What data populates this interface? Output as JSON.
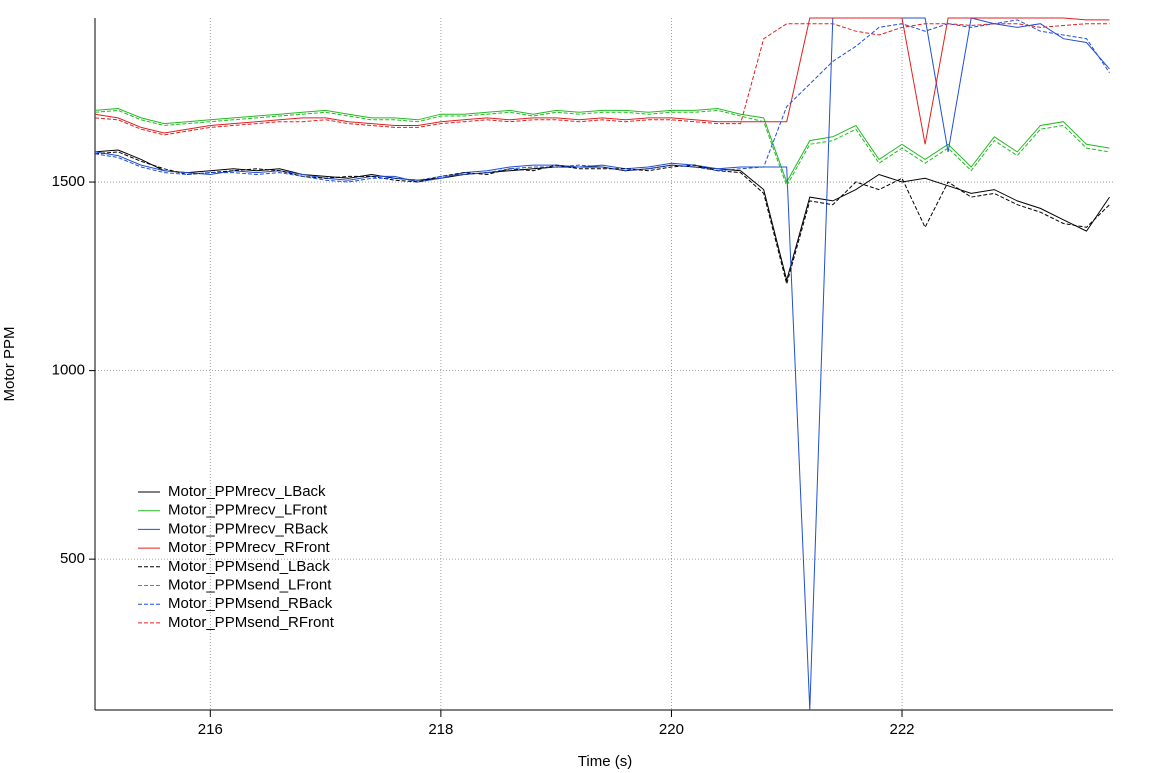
{
  "chart_data": {
    "type": "line",
    "x_label": "Time (s)",
    "y_label": "Motor PPM",
    "x": [
      215,
      215.2,
      215.4,
      215.6,
      215.8,
      216,
      216.2,
      216.4,
      216.6,
      216.8,
      217,
      217.2,
      217.4,
      217.6,
      217.8,
      218,
      218.2,
      218.4,
      218.6,
      218.8,
      219,
      219.2,
      219.4,
      219.6,
      219.8,
      220,
      220.2,
      220.4,
      220.6,
      220.8,
      221,
      221.2,
      221.4,
      221.6,
      221.8,
      222,
      222.2,
      222.4,
      222.6,
      222.8,
      223,
      223.2,
      223.4,
      223.6,
      223.8
    ],
    "xlim": [
      215,
      223.83
    ],
    "xticks": [
      216,
      218,
      220,
      222
    ],
    "ylim": [
      100,
      1935
    ],
    "yticks": [
      500,
      1000,
      1500
    ],
    "grid": true,
    "legend": "lower left",
    "series": [
      {
        "name": "Motor_PPMrecv_LBack",
        "color": "#000000",
        "dash": false,
        "values": [
          1580,
          1585,
          1560,
          1530,
          1525,
          1530,
          1535,
          1530,
          1535,
          1520,
          1515,
          1510,
          1520,
          1510,
          1505,
          1510,
          1520,
          1525,
          1530,
          1535,
          1540,
          1540,
          1540,
          1530,
          1535,
          1545,
          1540,
          1535,
          1530,
          1480,
          1240,
          1460,
          1450,
          1480,
          1520,
          1500,
          1510,
          1490,
          1470,
          1480,
          1450,
          1430,
          1400,
          1370,
          1460
        ]
      },
      {
        "name": "Motor_PPMrecv_LFront",
        "color": "#22bb22",
        "dash": false,
        "values": [
          1690,
          1695,
          1670,
          1655,
          1660,
          1665,
          1670,
          1675,
          1680,
          1685,
          1690,
          1680,
          1670,
          1670,
          1665,
          1680,
          1680,
          1685,
          1690,
          1680,
          1690,
          1685,
          1690,
          1690,
          1685,
          1690,
          1690,
          1695,
          1680,
          1670,
          1500,
          1610,
          1620,
          1650,
          1560,
          1600,
          1560,
          1600,
          1540,
          1620,
          1580,
          1650,
          1660,
          1600,
          1590
        ]
      },
      {
        "name": "Motor_PPMrecv_RBack",
        "color": "#1f4fd8",
        "dash": false,
        "values": [
          1580,
          1570,
          1545,
          1530,
          1525,
          1520,
          1530,
          1525,
          1530,
          1520,
          1510,
          1505,
          1515,
          1515,
          1500,
          1510,
          1525,
          1530,
          1540,
          1545,
          1545,
          1540,
          1545,
          1535,
          1540,
          1550,
          1545,
          1535,
          1540,
          1540,
          1540,
          100,
          1935,
          1935,
          1935,
          1935,
          1935,
          1580,
          1935,
          1920,
          1910,
          1920,
          1880,
          1870,
          1800
        ]
      },
      {
        "name": "Motor_PPMrecv_RFront",
        "color": "#e02020",
        "dash": false,
        "values": [
          1680,
          1670,
          1645,
          1630,
          1640,
          1650,
          1655,
          1660,
          1665,
          1670,
          1670,
          1660,
          1655,
          1650,
          1650,
          1660,
          1665,
          1670,
          1665,
          1670,
          1670,
          1665,
          1670,
          1665,
          1670,
          1670,
          1665,
          1660,
          1660,
          1660,
          1660,
          1935,
          1935,
          1935,
          1935,
          1935,
          1600,
          1935,
          1935,
          1935,
          1935,
          1935,
          1935,
          1930,
          1930
        ]
      },
      {
        "name": "Motor_PPMsend_LBack",
        "color": "#000000",
        "dash": true,
        "values": [
          1575,
          1580,
          1555,
          1535,
          1520,
          1525,
          1530,
          1535,
          1530,
          1515,
          1510,
          1515,
          1515,
          1505,
          1500,
          1515,
          1525,
          1520,
          1535,
          1530,
          1545,
          1535,
          1535,
          1535,
          1530,
          1540,
          1545,
          1530,
          1525,
          1470,
          1230,
          1450,
          1440,
          1500,
          1480,
          1510,
          1380,
          1500,
          1460,
          1470,
          1440,
          1420,
          1390,
          1380,
          1440
        ]
      },
      {
        "name": "Motor_PPMsend_LFront",
        "color": "#22bb22",
        "dash": true,
        "values": [
          1685,
          1690,
          1665,
          1650,
          1655,
          1660,
          1665,
          1670,
          1675,
          1680,
          1685,
          1675,
          1665,
          1665,
          1660,
          1675,
          1675,
          1680,
          1685,
          1675,
          1685,
          1680,
          1685,
          1685,
          1680,
          1685,
          1685,
          1690,
          1675,
          1660,
          1490,
          1600,
          1610,
          1640,
          1550,
          1590,
          1550,
          1590,
          1530,
          1610,
          1570,
          1640,
          1650,
          1590,
          1580
        ]
      },
      {
        "name": "Motor_PPMsend_RBack",
        "color": "#1f4fd8",
        "dash": true,
        "values": [
          1575,
          1565,
          1540,
          1525,
          1520,
          1525,
          1525,
          1520,
          1525,
          1515,
          1505,
          1500,
          1510,
          1510,
          1505,
          1515,
          1520,
          1525,
          1535,
          1540,
          1540,
          1545,
          1540,
          1530,
          1535,
          1545,
          1540,
          1530,
          1535,
          1540,
          1700,
          1760,
          1820,
          1860,
          1910,
          1920,
          1900,
          1920,
          1910,
          1920,
          1930,
          1900,
          1890,
          1880,
          1790
        ]
      },
      {
        "name": "Motor_PPMsend_RFront",
        "color": "#e02020",
        "dash": true,
        "values": [
          1670,
          1665,
          1640,
          1625,
          1635,
          1645,
          1650,
          1655,
          1660,
          1660,
          1665,
          1655,
          1650,
          1645,
          1645,
          1655,
          1660,
          1665,
          1660,
          1665,
          1665,
          1660,
          1665,
          1660,
          1665,
          1665,
          1660,
          1655,
          1655,
          1880,
          1920,
          1920,
          1920,
          1900,
          1890,
          1910,
          1920,
          1920,
          1915,
          1920,
          1920,
          1910,
          1915,
          1920,
          1920
        ]
      }
    ]
  }
}
